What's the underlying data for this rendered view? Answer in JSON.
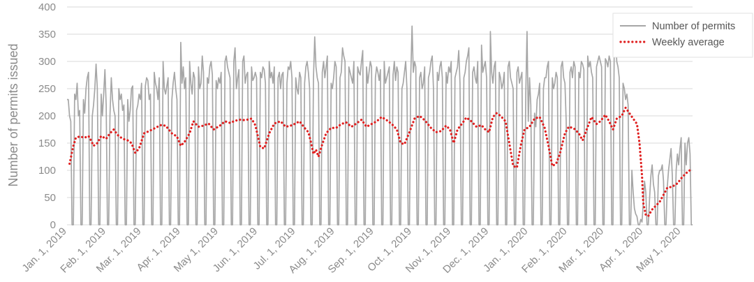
{
  "chart_data": {
    "type": "line",
    "ylabel": "Number of permits issued",
    "xlabel": "",
    "ylim": [
      0,
      400
    ],
    "yticks": [
      0,
      50,
      100,
      150,
      200,
      250,
      300,
      350,
      400
    ],
    "x_tick_labels": [
      "Jan. 1, 2019",
      "Feb. 1, 2019",
      "Mar. 1, 2019",
      "Apr. 1, 2019",
      "May 1, 2019",
      "Jun. 1, 2019",
      "Jul. 1, 2019",
      "Aug. 1, 2019",
      "Sep. 1, 2019",
      "Oct. 1, 2019",
      "Nov. 1, 2019",
      "Dec. 1, 2019",
      "Jan. 1, 2020",
      "Feb. 1, 2020",
      "Mar. 1, 2020",
      "Apr. 1, 2020",
      "May 1, 2020"
    ],
    "x_range": [
      "2019-01-01",
      "2020-05-10"
    ],
    "grid": true,
    "legend_position": "top-right",
    "colors": {
      "permits": "#a6a6a6",
      "weekly": "#e02020",
      "grid": "#d9d9d9",
      "axis_text": "#8a8a8a"
    },
    "series": [
      {
        "name": "Number of permits",
        "style": "solid",
        "weekday_values_by_month": [
          {
            "month": "2019-01",
            "values": [
              230,
              230,
              200,
              190,
              240,
              230,
              260,
              200,
              210,
              230,
              205,
              250,
              270,
              280,
              200,
              220,
              250,
              295,
              250,
              240,
              200,
              240,
              285,
              270
            ]
          },
          {
            "month": "2019-02",
            "values": [
              220,
              200,
              270,
              230,
              210,
              200,
              250,
              230,
              240,
              210,
              220,
              230,
              190,
              210,
              250,
              255,
              210,
              220,
              240,
              230
            ]
          },
          {
            "month": "2019-03",
            "values": [
              260,
              255,
              270,
              265,
              230,
              240,
              280,
              260,
              250,
              230,
              270,
              300,
              250,
              240,
              255,
              270,
              230,
              260,
              280,
              250,
              230
            ]
          },
          {
            "month": "2019-04",
            "values": [
              335,
              260,
              290,
              250,
              270,
              300,
              260,
              240,
              280,
              270,
              290,
              250,
              260,
              310,
              280,
              270,
              260,
              290,
              300,
              275,
              265,
              250
            ]
          },
          {
            "month": "2019-05",
            "values": [
              270,
              260,
              280,
              300,
              310,
              290,
              280,
              270,
              300,
              325,
              250,
              270,
              285,
              300,
              310,
              260,
              275,
              280,
              290,
              265,
              270,
              280
            ]
          },
          {
            "month": "2019-06",
            "values": [
              280,
              270,
              290,
              285,
              260,
              300,
              270,
              280,
              260,
              290,
              270,
              280,
              250,
              275,
              280,
              260,
              290,
              285,
              300,
              270
            ]
          },
          {
            "month": "2019-07",
            "values": [
              270,
              250,
              240,
              280,
              270,
              260,
              290,
              300,
              280,
              250,
              270,
              345,
              290,
              270,
              260,
              280,
              300,
              270,
              290,
              310,
              260,
              250
            ]
          },
          {
            "month": "2019-08",
            "values": [
              300,
              290,
              270,
              280,
              325,
              310,
              300,
              290,
              280,
              270,
              260,
              300,
              290,
              280,
              275,
              300,
              320,
              290,
              260,
              280,
              300,
              290
            ]
          },
          {
            "month": "2019-09",
            "values": [
              270,
              290,
              280,
              265,
              285,
              300,
              260,
              270,
              280,
              290,
              275,
              300,
              265,
              290,
              280,
              250,
              260,
              280,
              300,
              250
            ]
          },
          {
            "month": "2019-10",
            "values": [
              365,
              280,
              300,
              290,
              270,
              280,
              250,
              260,
              290,
              270,
              280,
              300,
              310,
              250,
              280,
              265,
              290,
              300,
              270,
              280,
              260,
              290,
              280
            ]
          },
          {
            "month": "2019-11",
            "values": [
              300,
              270,
              280,
              290,
              320,
              260,
              270,
              280,
              300,
              310,
              325,
              280,
              290,
              270,
              260,
              300,
              330,
              280,
              290,
              300,
              270
            ]
          },
          {
            "month": "2019-12",
            "values": [
              355,
              280,
              260,
              290,
              300,
              280,
              270,
              250,
              260,
              280,
              290,
              300,
              270,
              260,
              250,
              280,
              290,
              260,
              270,
              280,
              240
            ]
          },
          {
            "month": "2020-01",
            "values": [
              190,
              270,
              220,
              205,
              180,
              230,
              240,
              260,
              250,
              270,
              270,
              290,
              300,
              270,
              250,
              260,
              280,
              270,
              290,
              300,
              270,
              260
            ]
          },
          {
            "month": "2020-02",
            "values": [
              280,
              290,
              270,
              300,
              290,
              280,
              270,
              300,
              295,
              285,
              310,
              290,
              300,
              280,
              270,
              290,
              300,
              310,
              300,
              290
            ]
          },
          {
            "month": "2020-03",
            "values": [
              305,
              300,
              290,
              310,
              300,
              330,
              355,
              300,
              290,
              270,
              260,
              250,
              230,
              240,
              220,
              100,
              60,
              30,
              20,
              15,
              10,
              5
            ]
          },
          {
            "month": "2020-04",
            "values": [
              40,
              80,
              60,
              50,
              90,
              110,
              75,
              60,
              90,
              100,
              100,
              110,
              80,
              70,
              100,
              120,
              140,
              90,
              100,
              130,
              110,
              140
            ]
          },
          {
            "month": "2020-05",
            "values": [
              160,
              150,
              110,
              150,
              160,
              130
            ]
          }
        ]
      },
      {
        "name": "Weekly average",
        "style": "dotted",
        "points": [
          [
            "2019-01-03",
            112
          ],
          [
            "2019-01-06",
            145
          ],
          [
            "2019-01-08",
            160
          ],
          [
            "2019-01-11",
            162
          ],
          [
            "2019-01-15",
            160
          ],
          [
            "2019-01-18",
            163
          ],
          [
            "2019-01-20",
            155
          ],
          [
            "2019-01-22",
            145
          ],
          [
            "2019-01-25",
            150
          ],
          [
            "2019-01-28",
            163
          ],
          [
            "2019-02-01",
            158
          ],
          [
            "2019-02-04",
            168
          ],
          [
            "2019-02-07",
            175
          ],
          [
            "2019-02-10",
            165
          ],
          [
            "2019-02-14",
            158
          ],
          [
            "2019-02-18",
            155
          ],
          [
            "2019-02-21",
            150
          ],
          [
            "2019-02-24",
            132
          ],
          [
            "2019-02-27",
            140
          ],
          [
            "2019-03-03",
            168
          ],
          [
            "2019-03-07",
            172
          ],
          [
            "2019-03-12",
            178
          ],
          [
            "2019-03-16",
            183
          ],
          [
            "2019-03-20",
            182
          ],
          [
            "2019-03-25",
            168
          ],
          [
            "2019-03-29",
            162
          ],
          [
            "2019-04-01",
            145
          ],
          [
            "2019-04-04",
            152
          ],
          [
            "2019-04-08",
            168
          ],
          [
            "2019-04-11",
            190
          ],
          [
            "2019-04-15",
            180
          ],
          [
            "2019-04-19",
            182
          ],
          [
            "2019-04-23",
            186
          ],
          [
            "2019-04-27",
            175
          ],
          [
            "2019-05-02",
            182
          ],
          [
            "2019-05-06",
            190
          ],
          [
            "2019-05-10",
            187
          ],
          [
            "2019-05-14",
            191
          ],
          [
            "2019-05-18",
            193
          ],
          [
            "2019-05-22",
            192
          ],
          [
            "2019-05-27",
            195
          ],
          [
            "2019-05-30",
            183
          ],
          [
            "2019-06-03",
            143
          ],
          [
            "2019-06-06",
            140
          ],
          [
            "2019-06-10",
            168
          ],
          [
            "2019-06-14",
            186
          ],
          [
            "2019-06-19",
            190
          ],
          [
            "2019-06-23",
            180
          ],
          [
            "2019-06-27",
            182
          ],
          [
            "2019-06-30",
            185
          ],
          [
            "2019-07-04",
            190
          ],
          [
            "2019-07-08",
            178
          ],
          [
            "2019-07-11",
            170
          ],
          [
            "2019-07-13",
            152
          ],
          [
            "2019-07-15",
            130
          ],
          [
            "2019-07-17",
            138
          ],
          [
            "2019-07-19",
            125
          ],
          [
            "2019-07-22",
            148
          ],
          [
            "2019-07-25",
            168
          ],
          [
            "2019-07-29",
            178
          ],
          [
            "2019-08-02",
            178
          ],
          [
            "2019-08-06",
            185
          ],
          [
            "2019-08-10",
            188
          ],
          [
            "2019-08-14",
            180
          ],
          [
            "2019-08-18",
            186
          ],
          [
            "2019-08-22",
            193
          ],
          [
            "2019-08-26",
            180
          ],
          [
            "2019-08-30",
            185
          ],
          [
            "2019-09-03",
            190
          ],
          [
            "2019-09-07",
            198
          ],
          [
            "2019-09-11",
            192
          ],
          [
            "2019-09-15",
            185
          ],
          [
            "2019-09-19",
            175
          ],
          [
            "2019-09-22",
            150
          ],
          [
            "2019-09-25",
            148
          ],
          [
            "2019-09-29",
            170
          ],
          [
            "2019-10-03",
            195
          ],
          [
            "2019-10-07",
            200
          ],
          [
            "2019-10-11",
            192
          ],
          [
            "2019-10-16",
            178
          ],
          [
            "2019-10-20",
            170
          ],
          [
            "2019-10-24",
            172
          ],
          [
            "2019-10-28",
            182
          ],
          [
            "2019-10-31",
            175
          ],
          [
            "2019-11-03",
            150
          ],
          [
            "2019-11-06",
            175
          ],
          [
            "2019-11-10",
            187
          ],
          [
            "2019-11-13",
            197
          ],
          [
            "2019-11-17",
            190
          ],
          [
            "2019-11-21",
            180
          ],
          [
            "2019-11-25",
            183
          ],
          [
            "2019-11-28",
            175
          ],
          [
            "2019-12-01",
            170
          ],
          [
            "2019-12-04",
            198
          ],
          [
            "2019-12-07",
            205
          ],
          [
            "2019-12-10",
            200
          ],
          [
            "2019-12-14",
            190
          ],
          [
            "2019-12-17",
            150
          ],
          [
            "2019-12-20",
            108
          ],
          [
            "2019-12-23",
            105
          ],
          [
            "2019-12-26",
            145
          ],
          [
            "2019-12-29",
            175
          ],
          [
            "2020-01-02",
            180
          ],
          [
            "2020-01-06",
            195
          ],
          [
            "2020-01-10",
            198
          ],
          [
            "2020-01-14",
            178
          ],
          [
            "2020-01-17",
            145
          ],
          [
            "2020-01-20",
            108
          ],
          [
            "2020-01-23",
            112
          ],
          [
            "2020-01-26",
            130
          ],
          [
            "2020-01-30",
            168
          ],
          [
            "2020-02-02",
            180
          ],
          [
            "2020-02-06",
            177
          ],
          [
            "2020-02-10",
            168
          ],
          [
            "2020-02-13",
            155
          ],
          [
            "2020-02-17",
            180
          ],
          [
            "2020-02-20",
            198
          ],
          [
            "2020-02-24",
            185
          ],
          [
            "2020-02-27",
            190
          ],
          [
            "2020-03-02",
            202
          ],
          [
            "2020-03-05",
            190
          ],
          [
            "2020-03-08",
            175
          ],
          [
            "2020-03-11",
            195
          ],
          [
            "2020-03-15",
            200
          ],
          [
            "2020-03-18",
            215
          ],
          [
            "2020-03-21",
            205
          ],
          [
            "2020-03-24",
            195
          ],
          [
            "2020-03-27",
            185
          ],
          [
            "2020-03-29",
            150
          ],
          [
            "2020-03-31",
            90
          ],
          [
            "2020-04-01",
            40
          ],
          [
            "2020-04-03",
            18
          ],
          [
            "2020-04-05",
            16
          ],
          [
            "2020-04-08",
            28
          ],
          [
            "2020-04-11",
            35
          ],
          [
            "2020-04-14",
            42
          ],
          [
            "2020-04-17",
            55
          ],
          [
            "2020-04-20",
            68
          ],
          [
            "2020-04-24",
            70
          ],
          [
            "2020-04-28",
            76
          ],
          [
            "2020-05-02",
            88
          ],
          [
            "2020-05-06",
            97
          ],
          [
            "2020-05-09",
            102
          ]
        ]
      }
    ]
  }
}
